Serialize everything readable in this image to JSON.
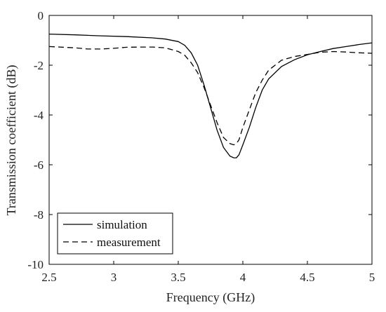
{
  "chart_data": {
    "type": "line",
    "title": "",
    "xlabel": "Frequency (GHz)",
    "ylabel": "Transmission coefficient (dB)",
    "xlim": [
      2.5,
      5
    ],
    "ylim": [
      -10,
      0
    ],
    "xticks": [
      2.5,
      3,
      3.5,
      4,
      4.5,
      5
    ],
    "xtick_labels": [
      "2.5",
      "3",
      "3.5",
      "4",
      "4.5",
      "5"
    ],
    "yticks": [
      0,
      -2,
      -4,
      -6,
      -8,
      -10
    ],
    "ytick_labels": [
      "0",
      "-2",
      "-4",
      "-6",
      "-8",
      "-10"
    ],
    "grid": false,
    "legend": {
      "position": "bottom-left",
      "entries": [
        "simulation",
        "measurement"
      ]
    },
    "series": [
      {
        "name": "simulation",
        "style": "solid",
        "color": "#000000",
        "x": [
          2.5,
          2.7,
          2.9,
          3.1,
          3.3,
          3.4,
          3.5,
          3.55,
          3.6,
          3.65,
          3.7,
          3.75,
          3.8,
          3.85,
          3.9,
          3.93,
          3.95,
          3.97,
          4.0,
          4.05,
          4.1,
          4.15,
          4.2,
          4.3,
          4.4,
          4.5,
          4.6,
          4.7,
          4.8,
          4.9,
          5.0
        ],
        "y": [
          -0.75,
          -0.78,
          -0.82,
          -0.85,
          -0.9,
          -0.95,
          -1.05,
          -1.2,
          -1.5,
          -2.0,
          -2.8,
          -3.7,
          -4.6,
          -5.3,
          -5.65,
          -5.72,
          -5.72,
          -5.6,
          -5.2,
          -4.5,
          -3.7,
          -3.0,
          -2.55,
          -2.05,
          -1.78,
          -1.58,
          -1.45,
          -1.33,
          -1.25,
          -1.17,
          -1.1
        ]
      },
      {
        "name": "measurement",
        "style": "dashed",
        "color": "#000000",
        "x": [
          2.5,
          2.7,
          2.8,
          2.9,
          3.0,
          3.1,
          3.2,
          3.3,
          3.4,
          3.5,
          3.55,
          3.6,
          3.65,
          3.7,
          3.75,
          3.8,
          3.85,
          3.9,
          3.93,
          3.95,
          3.97,
          4.0,
          4.05,
          4.1,
          4.15,
          4.2,
          4.3,
          4.4,
          4.5,
          4.6,
          4.7,
          4.8,
          4.9,
          5.0
        ],
        "y": [
          -1.25,
          -1.3,
          -1.35,
          -1.35,
          -1.32,
          -1.28,
          -1.27,
          -1.27,
          -1.3,
          -1.45,
          -1.6,
          -1.9,
          -2.3,
          -2.9,
          -3.6,
          -4.3,
          -4.9,
          -5.15,
          -5.2,
          -5.15,
          -5.0,
          -4.5,
          -3.8,
          -3.1,
          -2.6,
          -2.2,
          -1.8,
          -1.65,
          -1.57,
          -1.48,
          -1.45,
          -1.47,
          -1.5,
          -1.52
        ]
      }
    ]
  }
}
